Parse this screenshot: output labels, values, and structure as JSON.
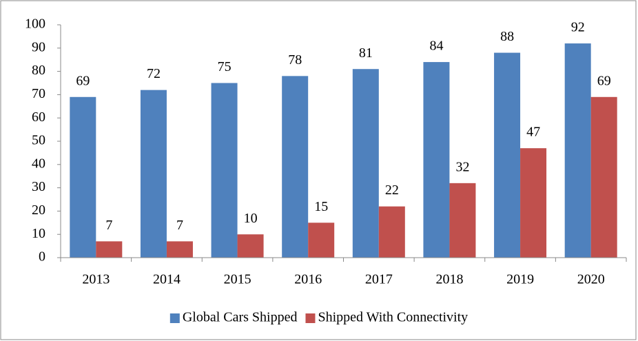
{
  "chart_data": {
    "type": "bar",
    "categories": [
      "2013",
      "2014",
      "2015",
      "2016",
      "2017",
      "2018",
      "2019",
      "2020"
    ],
    "series": [
      {
        "name": "Global Cars Shipped",
        "color": "#4f81bd",
        "values": [
          69,
          72,
          75,
          78,
          81,
          84,
          88,
          92
        ]
      },
      {
        "name": "Shipped With Connectivity",
        "color": "#c0504d",
        "values": [
          7,
          7,
          10,
          15,
          22,
          32,
          47,
          69
        ]
      }
    ],
    "ylim": [
      0,
      100
    ],
    "yticks": [
      0,
      10,
      20,
      30,
      40,
      50,
      60,
      70,
      80,
      90,
      100
    ],
    "legend": "bottom",
    "data_labels": true
  }
}
